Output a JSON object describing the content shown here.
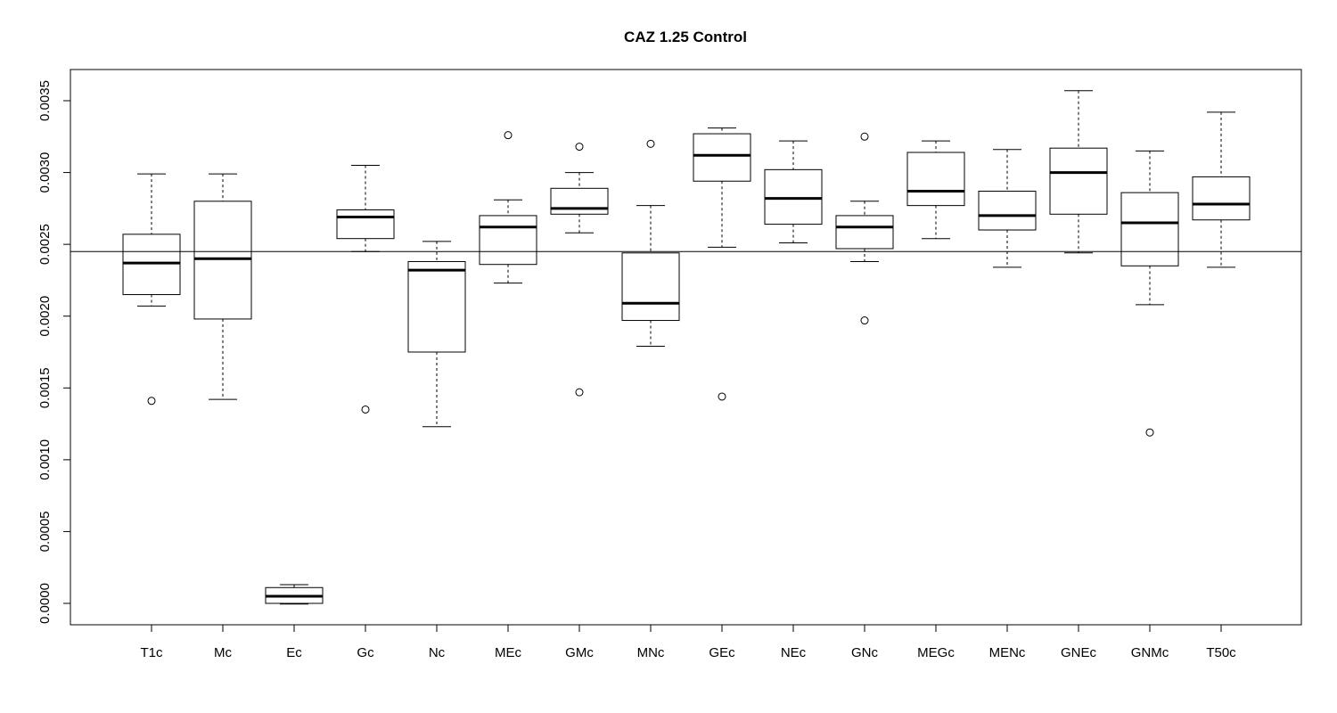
{
  "chart_data": {
    "type": "boxplot",
    "title": "CAZ 1.25 Control",
    "xlabel": "",
    "ylabel": "",
    "ylim": [
      -0.00015,
      0.0037
    ],
    "yticks": [
      0.0,
      0.0005,
      0.001,
      0.0015,
      0.002,
      0.0025,
      0.003,
      0.0035
    ],
    "ytick_labels": [
      "0.0000",
      "0.0005",
      "0.0010",
      "0.0015",
      "0.0020",
      "0.0025",
      "0.0030",
      "0.0035"
    ],
    "reference_line": 0.00245,
    "grid": false,
    "categories": [
      "T1c",
      "Mc",
      "Ec",
      "Gc",
      "Nc",
      "MEc",
      "GMc",
      "MNc",
      "GEc",
      "NEc",
      "GNc",
      "MEGc",
      "MENc",
      "GNEc",
      "GNMc",
      "T50c"
    ],
    "boxes": [
      {
        "min": 0.00207,
        "q1": 0.00215,
        "median": 0.00237,
        "q3": 0.00257,
        "max": 0.00299,
        "outliers": [
          0.00141
        ]
      },
      {
        "min": 0.00142,
        "q1": 0.00198,
        "median": 0.0024,
        "q3": 0.0028,
        "max": 0.00299,
        "outliers": []
      },
      {
        "min": -5e-06,
        "q1": 0.0,
        "median": 5e-05,
        "q3": 0.00011,
        "max": 0.00013,
        "outliers": []
      },
      {
        "min": 0.00245,
        "q1": 0.00254,
        "median": 0.00269,
        "q3": 0.00274,
        "max": 0.00305,
        "outliers": [
          0.00135
        ]
      },
      {
        "min": 0.00123,
        "q1": 0.00175,
        "median": 0.00232,
        "q3": 0.00238,
        "max": 0.00252,
        "outliers": []
      },
      {
        "min": 0.00223,
        "q1": 0.00236,
        "median": 0.00262,
        "q3": 0.0027,
        "max": 0.00281,
        "outliers": [
          0.00326
        ]
      },
      {
        "min": 0.00258,
        "q1": 0.00271,
        "median": 0.00275,
        "q3": 0.00289,
        "max": 0.003,
        "outliers": [
          0.00318,
          0.00147
        ]
      },
      {
        "min": 0.00179,
        "q1": 0.00197,
        "median": 0.00209,
        "q3": 0.00244,
        "max": 0.00277,
        "outliers": [
          0.0032
        ]
      },
      {
        "min": 0.00248,
        "q1": 0.00294,
        "median": 0.00312,
        "q3": 0.00327,
        "max": 0.00331,
        "outliers": [
          0.00144
        ]
      },
      {
        "min": 0.00251,
        "q1": 0.00264,
        "median": 0.00282,
        "q3": 0.00302,
        "max": 0.00322,
        "outliers": []
      },
      {
        "min": 0.00238,
        "q1": 0.00247,
        "median": 0.00262,
        "q3": 0.0027,
        "max": 0.0028,
        "outliers": [
          0.00325,
          0.00197
        ]
      },
      {
        "min": 0.00254,
        "q1": 0.00277,
        "median": 0.00287,
        "q3": 0.00314,
        "max": 0.00322,
        "outliers": []
      },
      {
        "min": 0.00234,
        "q1": 0.0026,
        "median": 0.0027,
        "q3": 0.00287,
        "max": 0.00316,
        "outliers": []
      },
      {
        "min": 0.00244,
        "q1": 0.00271,
        "median": 0.003,
        "q3": 0.00317,
        "max": 0.00357,
        "outliers": []
      },
      {
        "min": 0.00208,
        "q1": 0.00235,
        "median": 0.00265,
        "q3": 0.00286,
        "max": 0.00315,
        "outliers": [
          0.00119
        ]
      },
      {
        "min": 0.00234,
        "q1": 0.00267,
        "median": 0.00278,
        "q3": 0.00297,
        "max": 0.00342,
        "outliers": []
      }
    ]
  }
}
